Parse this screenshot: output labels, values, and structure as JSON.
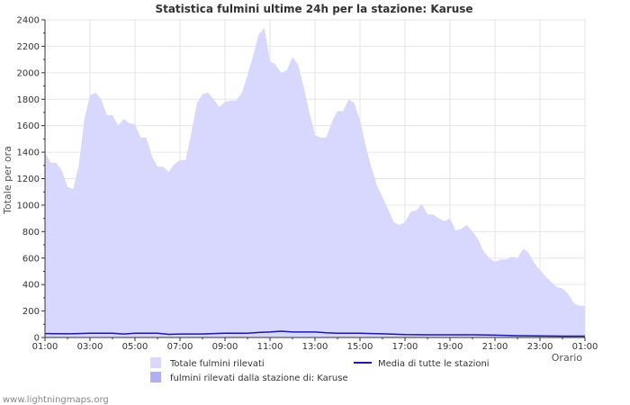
{
  "chart_data": {
    "type": "area",
    "title": "Statistica fulmini ultime 24h per la stazione: Karuse",
    "ylabel": "Totale per ora",
    "xlabel": "Orario",
    "ylim": [
      0,
      2400
    ],
    "yticks": [
      0,
      200,
      400,
      600,
      800,
      1000,
      1200,
      1400,
      1600,
      1800,
      2000,
      2200,
      2400
    ],
    "xlim": [
      0,
      24
    ],
    "xticks": [
      {
        "pos": 0,
        "label": "01:00"
      },
      {
        "pos": 2,
        "label": "03:00"
      },
      {
        "pos": 4,
        "label": "05:00"
      },
      {
        "pos": 6,
        "label": "07:00"
      },
      {
        "pos": 8,
        "label": "09:00"
      },
      {
        "pos": 10,
        "label": "11:00"
      },
      {
        "pos": 12,
        "label": "13:00"
      },
      {
        "pos": 14,
        "label": "15:00"
      },
      {
        "pos": 16,
        "label": "17:00"
      },
      {
        "pos": 18,
        "label": "19:00"
      },
      {
        "pos": 20,
        "label": "21:00"
      },
      {
        "pos": 22,
        "label": "23:00"
      },
      {
        "pos": 24,
        "label": "01:00"
      }
    ],
    "grid": true,
    "series": [
      {
        "name": "Totale fulmini rilevati",
        "kind": "area",
        "color": "#d8d8ff",
        "x": [
          0,
          0.25,
          0.5,
          0.75,
          1,
          1.25,
          1.5,
          1.75,
          2,
          2.25,
          2.5,
          2.75,
          3,
          3.25,
          3.5,
          3.75,
          4,
          4.25,
          4.5,
          4.75,
          5,
          5.25,
          5.5,
          5.75,
          6,
          6.25,
          6.5,
          6.75,
          7,
          7.25,
          7.5,
          7.75,
          8,
          8.25,
          8.5,
          8.75,
          9,
          9.25,
          9.5,
          9.75,
          10,
          10.25,
          10.5,
          10.75,
          11,
          11.25,
          11.5,
          11.75,
          12,
          12.25,
          12.5,
          12.75,
          13,
          13.25,
          13.5,
          13.75,
          14,
          14.25,
          14.5,
          14.75,
          15,
          15.25,
          15.5,
          15.75,
          16,
          16.25,
          16.5,
          16.75,
          17,
          17.25,
          17.5,
          17.75,
          18,
          18.25,
          18.5,
          18.75,
          19,
          19.25,
          19.5,
          19.75,
          20,
          20.25,
          20.5,
          20.75,
          21,
          21.25,
          21.5,
          21.75,
          22,
          22.25,
          22.5,
          22.75,
          23,
          23.25,
          23.5,
          23.75,
          24
        ],
        "values": [
          1400,
          1320,
          1320,
          1260,
          1140,
          1120,
          1300,
          1650,
          1830,
          1850,
          1800,
          1680,
          1680,
          1600,
          1650,
          1620,
          1610,
          1510,
          1510,
          1370,
          1290,
          1290,
          1250,
          1310,
          1340,
          1340,
          1540,
          1770,
          1840,
          1850,
          1800,
          1740,
          1780,
          1790,
          1790,
          1850,
          1980,
          2130,
          2290,
          2340,
          2090,
          2060,
          2000,
          2020,
          2120,
          2060,
          1890,
          1700,
          1530,
          1510,
          1510,
          1630,
          1710,
          1710,
          1800,
          1770,
          1640,
          1450,
          1290,
          1150,
          1060,
          970,
          870,
          850,
          870,
          950,
          960,
          1010,
          930,
          930,
          900,
          880,
          900,
          810,
          820,
          850,
          800,
          740,
          650,
          600,
          570,
          590,
          590,
          610,
          600,
          670,
          640,
          560,
          510,
          460,
          420,
          380,
          370,
          330,
          260,
          240,
          240
        ]
      },
      {
        "name": "fulmini rilevati dalla stazione di: Karuse",
        "kind": "area",
        "color": "#b0b0f0",
        "x": [
          0,
          24
        ],
        "values": [
          0,
          0
        ]
      },
      {
        "name": "Media di tutte le stazioni",
        "kind": "line",
        "color": "#1a1aa0",
        "x": [
          0,
          1,
          1.5,
          2,
          3,
          3.5,
          4,
          5,
          5.5,
          6,
          7,
          7.5,
          8,
          9,
          9.5,
          10,
          10.5,
          11,
          12,
          12.5,
          13,
          14,
          14.5,
          15,
          16,
          17,
          18,
          19,
          20,
          21,
          22,
          23,
          24
        ],
        "values": [
          30,
          28,
          30,
          32,
          32,
          26,
          32,
          32,
          24,
          26,
          26,
          30,
          32,
          32,
          38,
          42,
          48,
          42,
          42,
          36,
          32,
          32,
          30,
          28,
          22,
          20,
          20,
          20,
          18,
          14,
          12,
          10,
          10
        ]
      }
    ]
  },
  "footer": "www.lightningmaps.org"
}
